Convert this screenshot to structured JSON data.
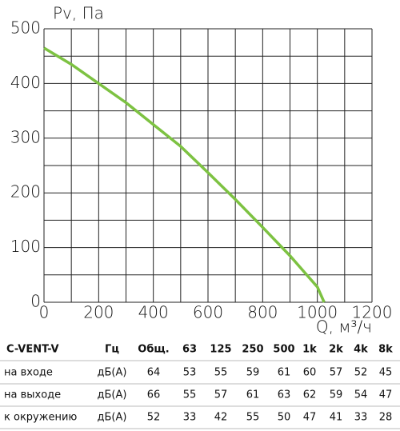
{
  "chart_data": {
    "type": "line",
    "y_label": "Pv, Па",
    "x_label": "Q, м³/ч",
    "x": [
      0,
      100,
      200,
      300,
      400,
      500,
      600,
      700,
      800,
      900,
      1000,
      1025
    ],
    "series": [
      {
        "color": "#7dc242",
        "values": [
          465,
          435,
          400,
          365,
          325,
          285,
          237,
          188,
          137,
          85,
          28,
          0
        ]
      }
    ],
    "xlim": [
      0,
      1200
    ],
    "ylim": [
      0,
      500
    ],
    "xticks": [
      0,
      200,
      400,
      600,
      800,
      1000,
      1200
    ],
    "yticks": [
      0,
      100,
      200,
      300,
      400,
      500
    ],
    "xgrid": [
      0,
      100,
      200,
      300,
      400,
      500,
      600,
      700,
      800,
      900,
      1000,
      1100,
      1200
    ],
    "ygrid": [
      0,
      50,
      100,
      150,
      200,
      250,
      300,
      350,
      400,
      450,
      500
    ],
    "grid": true
  },
  "table": {
    "header": [
      "C-VENT-V",
      "Гц",
      "Общ.",
      "63",
      "125",
      "250",
      "500",
      "1k",
      "2k",
      "4k",
      "8k"
    ],
    "rows": [
      [
        "на входе",
        "дБ(А)",
        64,
        53,
        55,
        59,
        61,
        60,
        57,
        52,
        45
      ],
      [
        "на выходе",
        "дБ(А)",
        66,
        55,
        57,
        61,
        63,
        62,
        59,
        54,
        47
      ],
      [
        "к окружению",
        "дБ(А)",
        52,
        33,
        42,
        55,
        50,
        47,
        41,
        33,
        28
      ]
    ]
  }
}
